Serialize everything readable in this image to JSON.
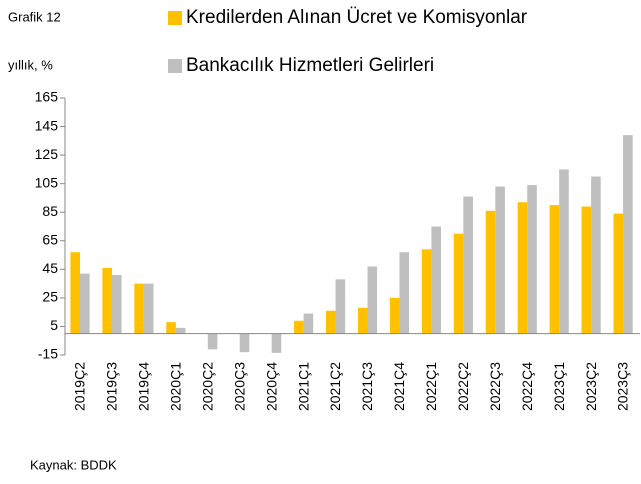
{
  "chart_data": {
    "type": "bar",
    "title": "Grafik 12",
    "y_axis_label": "yıllık, %",
    "source": "Kaynak: BDDK",
    "categories": [
      "2019Ç2",
      "2019Ç3",
      "2019Ç4",
      "2020Ç1",
      "2020Ç2",
      "2020Ç3",
      "2020Ç4",
      "2021Ç1",
      "2021Ç2",
      "2021Ç3",
      "2021Ç4",
      "2022Ç1",
      "2022Ç2",
      "2022Ç3",
      "2022Ç4",
      "2023Ç1",
      "2023Ç2",
      "2023Ç3"
    ],
    "series": [
      {
        "name": "Kredilerden Alınan Ücret ve Komisyonlar",
        "color": "#ffc000",
        "values": [
          57,
          46,
          35,
          8,
          0,
          0,
          0,
          9,
          16,
          18,
          25,
          59,
          70,
          86,
          92,
          90,
          89,
          84
        ]
      },
      {
        "name": "Bankacılık Hizmetleri Gelirleri",
        "color": "#bfbfbf",
        "values": [
          42,
          41,
          35,
          4,
          -11,
          -13,
          -13.5,
          14,
          38,
          47,
          57,
          75,
          96,
          103,
          104,
          115,
          110,
          139
        ]
      }
    ],
    "ylim": [
      -15,
      165
    ],
    "yticks": [
      -15,
      5,
      25,
      45,
      65,
      85,
      105,
      125,
      145,
      165
    ],
    "grid": false
  }
}
